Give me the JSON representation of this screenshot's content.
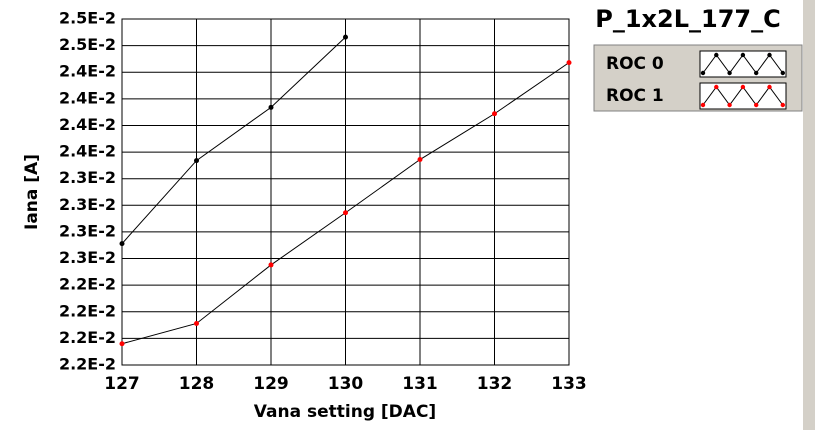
{
  "chart_data": {
    "type": "line",
    "title": "P_1x2L_177_C",
    "xlabel": "Vana setting [DAC]",
    "ylabel": "Iana [A]",
    "xlim": [
      127,
      133
    ],
    "xticks": [
      127,
      128,
      129,
      130,
      131,
      132,
      133
    ],
    "ylim": [
      0.0216,
      0.02485
    ],
    "yticks": [
      {
        "value": 0.0216,
        "label": "2.2E-2"
      },
      {
        "value": 0.02185,
        "label": "2.2E-2"
      },
      {
        "value": 0.0221,
        "label": "2.2E-2"
      },
      {
        "value": 0.02235,
        "label": "2.2E-2"
      },
      {
        "value": 0.0226,
        "label": "2.3E-2"
      },
      {
        "value": 0.02285,
        "label": "2.3E-2"
      },
      {
        "value": 0.0231,
        "label": "2.3E-2"
      },
      {
        "value": 0.02335,
        "label": "2.3E-2"
      },
      {
        "value": 0.0236,
        "label": "2.4E-2"
      },
      {
        "value": 0.02385,
        "label": "2.4E-2"
      },
      {
        "value": 0.0241,
        "label": "2.4E-2"
      },
      {
        "value": 0.02435,
        "label": "2.4E-2"
      },
      {
        "value": 0.0246,
        "label": "2.5E-2"
      },
      {
        "value": 0.02485,
        "label": "2.5E-2"
      }
    ],
    "grid": true,
    "series": [
      {
        "name": "ROC 0",
        "color": "#000000",
        "x": [
          127,
          128,
          129,
          130
        ],
        "values": [
          0.02274,
          0.02352,
          0.02402,
          0.02468
        ]
      },
      {
        "name": "ROC 1",
        "color": "#ff0000",
        "x": [
          127,
          128,
          129,
          130,
          131,
          132,
          133
        ],
        "values": [
          0.0218,
          0.02199,
          0.02254,
          0.02303,
          0.02353,
          0.02396,
          0.02444
        ]
      }
    ]
  }
}
